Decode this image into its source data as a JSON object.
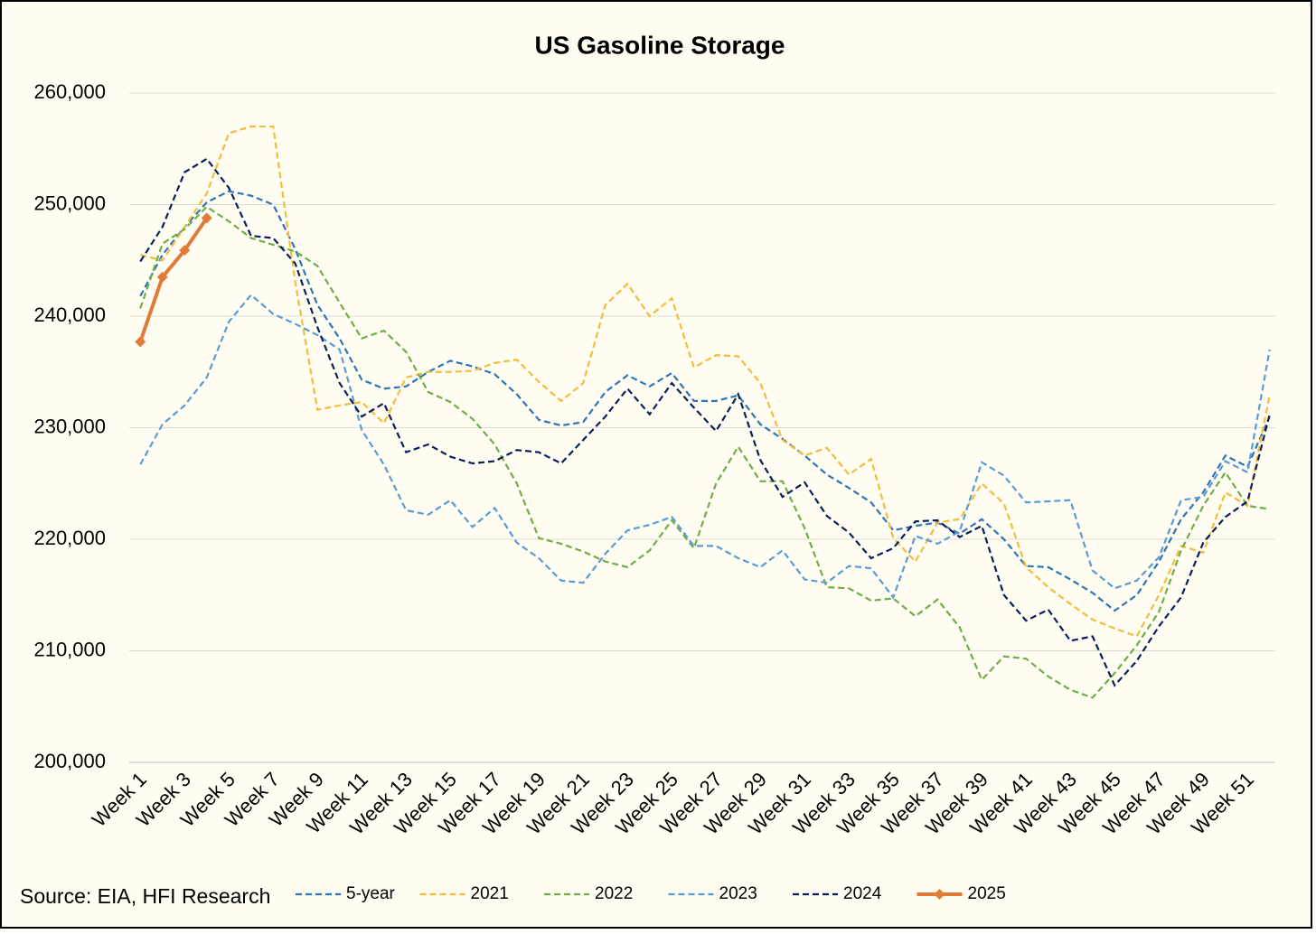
{
  "chart_data": {
    "type": "line",
    "title": "US Gasoline Storage",
    "note": "Source: EIA, HFI Research",
    "categories": [
      "Week 1",
      null,
      "Week 3",
      null,
      "Week 5",
      null,
      "Week 7",
      null,
      "Week 9",
      null,
      "Week 11",
      null,
      "Week 13",
      null,
      "Week 15",
      null,
      "Week 17",
      null,
      "Week 19",
      null,
      "Week 21",
      null,
      "Week 23",
      null,
      "Week 25",
      null,
      "Week 27",
      null,
      "Week 29",
      null,
      "Week 31",
      null,
      "Week 33",
      null,
      "Week 35",
      null,
      "Week 37",
      null,
      "Week 39",
      null,
      "Week 41",
      null,
      "Week 43",
      null,
      "Week 45",
      null,
      "Week 47",
      null,
      "Week 49",
      null,
      "Week 51",
      null
    ],
    "ylim": [
      200000,
      260000
    ],
    "yticks": [
      {
        "value": 200000,
        "label": "200,000"
      },
      {
        "value": 210000,
        "label": "210,000"
      },
      {
        "value": 220000,
        "label": "220,000"
      },
      {
        "value": 230000,
        "label": "230,000"
      },
      {
        "value": 240000,
        "label": "240,000"
      },
      {
        "value": 250000,
        "label": "250,000"
      },
      {
        "value": 260000,
        "label": "260,000"
      }
    ],
    "grid": true,
    "legend": "bottom",
    "series": [
      {
        "name": "5-year",
        "color": "#2e75b6",
        "line_style": "dashed",
        "values": [
          241800,
          245500,
          248000,
          250200,
          251200,
          250800,
          250000,
          246000,
          241000,
          238000,
          234300,
          233500,
          233700,
          235000,
          236000,
          235500,
          234800,
          233000,
          230700,
          230200,
          230500,
          233200,
          234700,
          233700,
          234900,
          232400,
          232400,
          232900,
          230300,
          229000,
          227500,
          225800,
          224600,
          223300,
          220800,
          221200,
          221500,
          220500,
          221800,
          220000,
          217600,
          217500,
          216400,
          215200,
          213600,
          215000,
          218000,
          221800,
          224200,
          227500,
          226500,
          231000
        ]
      },
      {
        "name": "2021",
        "color": "#f2bd3a",
        "line_style": "dashed",
        "values": [
          245500,
          245000,
          248000,
          251000,
          256400,
          257000,
          257000,
          243000,
          231600,
          232000,
          232300,
          230400,
          234500,
          235000,
          235000,
          235100,
          235800,
          236100,
          234100,
          232400,
          234000,
          241000,
          242900,
          240000,
          241600,
          235400,
          236500,
          236400,
          234000,
          228900,
          227500,
          228200,
          225800,
          227200,
          220100,
          218000,
          221500,
          221800,
          225000,
          223200,
          217500,
          215700,
          214200,
          212800,
          212000,
          211300,
          215000,
          219400,
          218800,
          224200,
          223000,
          232900
        ]
      },
      {
        "name": "2022",
        "color": "#70ad47",
        "line_style": "dashed",
        "values": [
          240700,
          246500,
          247800,
          249800,
          248500,
          247000,
          246400,
          245800,
          244500,
          241200,
          238000,
          238700,
          236800,
          233200,
          232300,
          230800,
          228500,
          225000,
          220100,
          219600,
          218900,
          218000,
          217500,
          219000,
          221700,
          219200,
          225000,
          228300,
          225200,
          225200,
          221000,
          215700,
          215600,
          214500,
          214700,
          213100,
          214600,
          212100,
          207400,
          209500,
          209300,
          207700,
          206500,
          205800,
          208000,
          210500,
          213500,
          219000,
          223000,
          226000,
          223000,
          222700
        ]
      },
      {
        "name": "2023",
        "color": "#5b9bd5",
        "line_style": "dashed",
        "values": [
          226700,
          230300,
          232000,
          234500,
          239500,
          241900,
          240200,
          239300,
          238300,
          237000,
          229800,
          226700,
          222600,
          222200,
          223500,
          221100,
          222800,
          219700,
          218300,
          216300,
          216100,
          218700,
          220800,
          221300,
          222000,
          219400,
          219400,
          218300,
          217500,
          219000,
          216400,
          216100,
          217600,
          217400,
          214800,
          220300,
          219600,
          220700,
          226900,
          225700,
          223300,
          223400,
          223500,
          217200,
          215600,
          216300,
          218400,
          223500,
          223800,
          227000,
          226000,
          237000
        ]
      },
      {
        "name": "2024",
        "color": "#0b1f5c",
        "line_style": "dashed",
        "values": [
          244900,
          248000,
          252900,
          254100,
          251500,
          247200,
          247000,
          244700,
          239000,
          234000,
          231000,
          232200,
          227800,
          228500,
          227400,
          226800,
          227000,
          228000,
          227800,
          226800,
          228900,
          231000,
          233500,
          231200,
          234000,
          231800,
          229700,
          233000,
          227100,
          223800,
          225100,
          222100,
          220600,
          218300,
          219200,
          221600,
          221700,
          220200,
          221200,
          215000,
          212700,
          213700,
          210900,
          211300,
          206900,
          209100,
          212200,
          214800,
          219700,
          222000,
          223400,
          231200
        ]
      },
      {
        "name": "2025",
        "color": "#e07b39",
        "line_style": "solid",
        "marker": "diamond",
        "values": [
          237700,
          243500,
          245900,
          248800,
          null,
          null,
          null,
          null,
          null,
          null,
          null,
          null,
          null,
          null,
          null,
          null,
          null,
          null,
          null,
          null,
          null,
          null,
          null,
          null,
          null,
          null,
          null,
          null,
          null,
          null,
          null,
          null,
          null,
          null,
          null,
          null,
          null,
          null,
          null,
          null,
          null,
          null,
          null,
          null,
          null,
          null,
          null,
          null,
          null,
          null,
          null,
          null
        ]
      }
    ]
  }
}
